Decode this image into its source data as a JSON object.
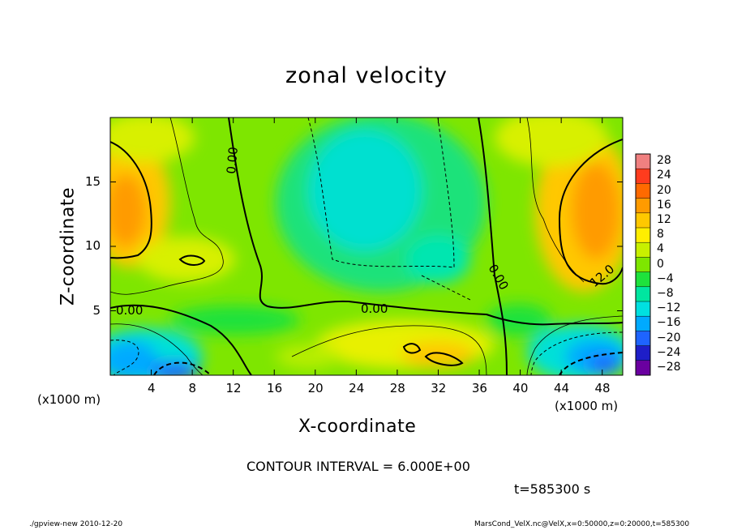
{
  "chart_data": {
    "type": "heatmap",
    "title": "zonal velocity",
    "xlabel": "X-coordinate",
    "ylabel": "Z-coordinate",
    "x_unit_label": "(x1000 m)",
    "xlim": [
      0,
      50
    ],
    "ylim": [
      0,
      20
    ],
    "x_ticks": [
      "4",
      "8",
      "12",
      "16",
      "20",
      "24",
      "28",
      "32",
      "36",
      "40",
      "44",
      "48"
    ],
    "y_ticks": [
      "5",
      "10",
      "15"
    ],
    "colorbar": {
      "levels": [
        "28",
        "24",
        "20",
        "16",
        "12",
        "8",
        "4",
        "0",
        "−4",
        "−8",
        "−12",
        "−16",
        "−20",
        "−24",
        "−28"
      ],
      "colors": [
        "#f08080",
        "#ff3c1e",
        "#ff6a00",
        "#ff9b00",
        "#ffc800",
        "#ffee00",
        "#c8f000",
        "#7ee600",
        "#1ee23c",
        "#00e6a0",
        "#00e0e0",
        "#00aaff",
        "#1e64ff",
        "#1e1ec8",
        "#6a00a0"
      ]
    },
    "contour_labels": [
      "0.00",
      "0.00",
      "0.00",
      "0.00",
      "12.0"
    ],
    "grid": false
  },
  "annotations": {
    "contour_interval": "CONTOUR INTERVAL = 6.000E+00",
    "time": "t=585300 s"
  },
  "footer": {
    "left": "./gpview-new  2010-12-20",
    "right": "MarsCond_VelX.nc@VelX,x=0:50000,z=0:20000,t=585300"
  }
}
